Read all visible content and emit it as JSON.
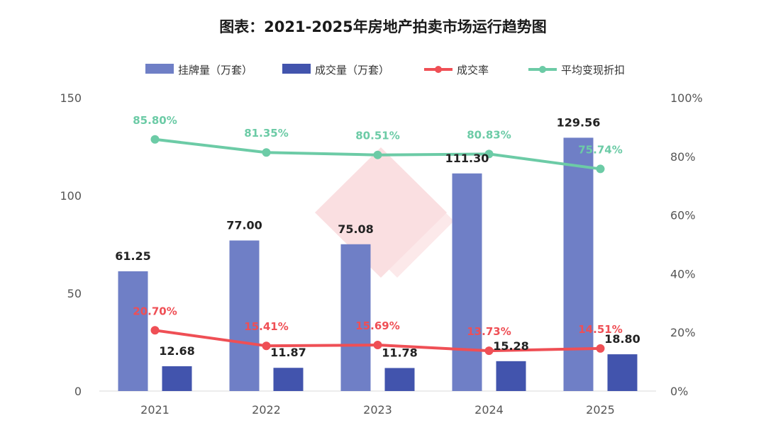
{
  "chart_data": {
    "type": "bar",
    "title": "图表：2021-2025年房地产拍卖市场运行趋势图",
    "categories": [
      "2021",
      "2022",
      "2023",
      "2024",
      "2025"
    ],
    "y_left": {
      "ticks": [
        "0",
        "50",
        "100",
        "150"
      ],
      "ylim": [
        0,
        150
      ]
    },
    "y_right": {
      "ticks": [
        "0%",
        "20%",
        "40%",
        "60%",
        "80%",
        "100%"
      ],
      "ylim": [
        0,
        100
      ]
    },
    "legend_position": "top",
    "grid": false,
    "series": [
      {
        "name": "挂牌量（万套）",
        "kind": "bar",
        "axis": "left",
        "color": "#6f7fc6",
        "values": [
          61.25,
          77.0,
          75.08,
          111.3,
          129.56
        ],
        "labels": [
          "61.25",
          "77.00",
          "75.08",
          "111.30",
          "129.56"
        ]
      },
      {
        "name": "成交量（万套）",
        "kind": "bar",
        "axis": "left",
        "color": "#4254ad",
        "values": [
          12.68,
          11.87,
          11.78,
          15.28,
          18.8
        ],
        "labels": [
          "12.68",
          "11.87",
          "11.78",
          "15.28",
          "18.80"
        ]
      },
      {
        "name": "成交率",
        "kind": "line",
        "axis": "right",
        "color": "#ef4f55",
        "values": [
          20.7,
          15.41,
          15.69,
          13.73,
          14.51
        ],
        "labels": [
          "20.70%",
          "15.41%",
          "15.69%",
          "13.73%",
          "14.51%"
        ]
      },
      {
        "name": "平均变现折扣",
        "kind": "line",
        "axis": "right",
        "color": "#6ccba6",
        "values": [
          85.8,
          81.35,
          80.51,
          80.83,
          75.74
        ],
        "labels": [
          "85.80%",
          "81.35%",
          "80.51%",
          "80.83%",
          "75.74%"
        ]
      }
    ]
  }
}
